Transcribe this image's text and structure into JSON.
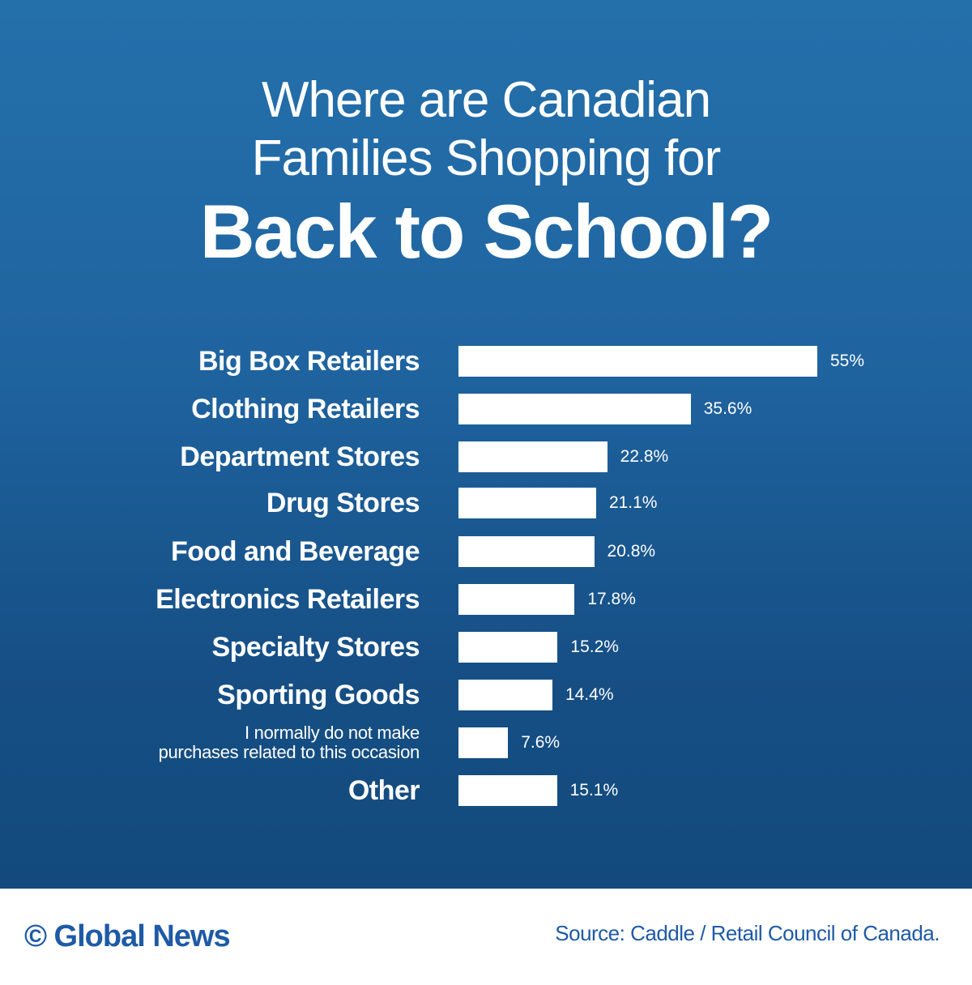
{
  "title": {
    "line1": "Where are Canadian",
    "line2": "Families Shopping for",
    "line3": "Back to School?"
  },
  "footer": {
    "brand": "© Global News",
    "source": "Source: Caddle / Retail Council of Canada."
  },
  "colors": {
    "background_top": "#2470ab",
    "background_bottom": "#124a7c",
    "bar": "#ffffff",
    "footer_text": "#1e5aa6"
  },
  "chart_data": {
    "type": "bar",
    "orientation": "horizontal",
    "title": "Where are Canadian Families Shopping for Back to School?",
    "xlabel": "",
    "ylabel": "",
    "categories": [
      "Big Box Retailers",
      "Clothing Retailers",
      "Department Stores",
      "Drug Stores",
      "Food and Beverage",
      "Electronics Retailers",
      "Specialty Stores",
      "Sporting Goods",
      "I normally do not make purchases related to this occasion",
      "Other"
    ],
    "values": [
      55,
      35.6,
      22.8,
      21.1,
      20.8,
      17.8,
      15.2,
      14.4,
      7.6,
      15.1
    ],
    "value_labels": [
      "55%",
      "35.6%",
      "22.8%",
      "21.1%",
      "20.8%",
      "17.8%",
      "15.2%",
      "14.4%",
      "7.6%",
      "15.1%"
    ],
    "unit": "%",
    "grid": false,
    "legend": "none",
    "source": "Caddle / Retail Council of Canada"
  },
  "rows": [
    {
      "label": "Big Box Retailers",
      "value": "55%"
    },
    {
      "label": "Clothing Retailers",
      "value": "35.6%"
    },
    {
      "label": "Department Stores",
      "value": "22.8%"
    },
    {
      "label": "Drug Stores",
      "value": "21.1%"
    },
    {
      "label": "Food and Beverage",
      "value": "20.8%"
    },
    {
      "label": "Electronics Retailers",
      "value": "17.8%"
    },
    {
      "label": "Specialty Stores",
      "value": "15.2%"
    },
    {
      "label": "Sporting Goods",
      "value": "14.4%"
    },
    {
      "label_line1": "I normally do not make",
      "label_line2": "purchases related to this occasion",
      "value": "7.6%"
    },
    {
      "label": "Other",
      "value": "15.1%"
    }
  ]
}
